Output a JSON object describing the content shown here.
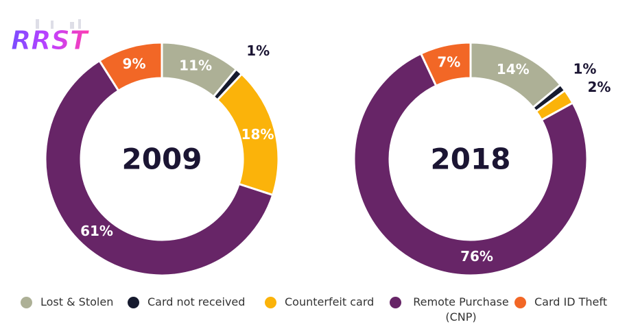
{
  "logo": {
    "text": "RRST"
  },
  "colors": {
    "lost_stolen": "#adb096",
    "card_not_received": "#161a2e",
    "counterfeit": "#fbb30a",
    "remote_purchase": "#672567",
    "card_id_theft": "#f26726"
  },
  "legend": [
    {
      "label": "Lost & Stolen",
      "color": "#adb096"
    },
    {
      "label": "Card not received",
      "color": "#161a2e"
    },
    {
      "label": "Counterfeit card",
      "color": "#fbb30a"
    },
    {
      "label": "Remote Purchase (CNP)",
      "color": "#672567"
    },
    {
      "label": "Card ID Theft",
      "color": "#f26726"
    }
  ],
  "chart_data": [
    {
      "type": "pie",
      "title": "2009",
      "categories": [
        "Lost & Stolen",
        "Card not received",
        "Counterfeit card",
        "Remote Purchase (CNP)",
        "Card ID Theft"
      ],
      "values": [
        11,
        1,
        18,
        61,
        9
      ],
      "labels": [
        "11%",
        "1%",
        "18%",
        "61%",
        "9%"
      ]
    },
    {
      "type": "pie",
      "title": "2018",
      "categories": [
        "Lost & Stolen",
        "Card not received",
        "Counterfeit card",
        "Remote Purchase (CNP)",
        "Card ID Theft"
      ],
      "values": [
        14,
        1,
        2,
        76,
        7
      ],
      "labels": [
        "14%",
        "1%",
        "2%",
        "76%",
        "7%"
      ]
    }
  ]
}
